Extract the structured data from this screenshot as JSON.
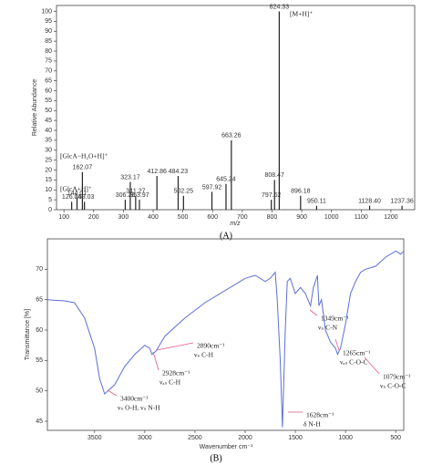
{
  "chart_data": [
    {
      "type": "bar",
      "xlabel": "m/z",
      "ylabel": "Relative Abundance",
      "caption": "(A)",
      "color": "#222222",
      "x": [
        126.04,
        144.01,
        162.07,
        169.03,
        306.28,
        323.17,
        341.27,
        353.97,
        412.86,
        484.23,
        502.25,
        597.92,
        645.24,
        663.26,
        797.62,
        808.47,
        824.33,
        896.18,
        950.11,
        1128.4,
        1237.36
      ],
      "x_labels": [
        "126.04",
        "144.01",
        "162.07",
        "169.03",
        "306.28",
        "323.17",
        "341.27",
        "353.97",
        "412.86",
        "484.23",
        "502.25",
        "597.92",
        "645.24",
        "663.26",
        "797.62",
        "808.47",
        "824.33",
        "896.18",
        "950.11",
        "1128.40",
        "1237.36"
      ],
      "values": [
        4,
        6,
        19,
        4,
        5,
        14,
        7,
        5,
        17,
        17,
        7,
        9,
        13,
        35,
        5,
        15,
        100,
        7,
        2,
        2,
        2
      ],
      "xlim": [
        75,
        1280
      ],
      "xticks": [
        100,
        200,
        300,
        400,
        500,
        600,
        700,
        800,
        900,
        1000,
        1100,
        1200
      ],
      "ylim": [
        0,
        103
      ],
      "yticks": [
        0,
        5,
        10,
        15,
        20,
        25,
        30,
        35,
        40,
        45,
        50,
        55,
        60,
        65,
        70,
        75,
        80,
        85,
        90,
        95,
        100
      ],
      "grid": false,
      "annotations": [
        "[M+H]⁺",
        "[GlcA−H₂O+H]⁺",
        "[GlcA+H]⁺"
      ],
      "annotation_color": "#d6336c"
    },
    {
      "type": "line",
      "xlabel": "Wavenumber cm⁻¹",
      "ylabel": "Transmittance [%]",
      "caption": "(B)",
      "color": "#5b6fd6",
      "x": [
        3970,
        3800,
        3700,
        3600,
        3500,
        3450,
        3400,
        3300,
        3200,
        3100,
        3000,
        2950,
        2928,
        2890,
        2800,
        2600,
        2400,
        2200,
        2000,
        1900,
        1800,
        1750,
        1700,
        1680,
        1650,
        1628,
        1600,
        1580,
        1550,
        1500,
        1450,
        1400,
        1349,
        1320,
        1280,
        1265,
        1240,
        1200,
        1150,
        1100,
        1079,
        1050,
        1000,
        950,
        900,
        850,
        800,
        700,
        600,
        500,
        450,
        420
      ],
      "values": [
        65,
        64.8,
        64.5,
        62,
        57,
        52,
        49.5,
        51,
        54,
        56,
        57.5,
        57,
        56,
        56.5,
        59,
        62,
        64.5,
        66.5,
        68.5,
        69,
        68,
        68.5,
        69.5,
        65,
        55,
        44,
        60,
        68,
        68.5,
        66,
        67,
        66,
        64,
        67,
        69,
        64,
        65,
        60,
        58,
        57,
        56,
        57,
        61,
        66,
        68,
        69.5,
        70,
        70.5,
        72,
        73,
        72.5,
        73
      ],
      "xlim": [
        3970,
        420
      ],
      "xticks": [
        3500,
        3000,
        2500,
        2000,
        1500,
        1000,
        500
      ],
      "ylim": [
        43.5,
        75
      ],
      "yticks": [
        45,
        50,
        55,
        60,
        65,
        70
      ],
      "grid": false,
      "annotations": [
        {
          "label": "3400cm⁻¹",
          "note": "νₛ O-H, νₛ N-H"
        },
        {
          "label": "2928cm⁻¹",
          "note": "νₐₛ C-H"
        },
        {
          "label": "2890cm⁻¹",
          "note": "νₛ C-H"
        },
        {
          "label": "1349cm⁻¹",
          "note": "νₛ C-N"
        },
        {
          "label": "1265cm⁻¹",
          "note": "νₐₛ C-O-C"
        },
        {
          "label": "1079cm⁻¹",
          "note": "νₛ C-O-C"
        },
        {
          "label": "1628cm⁻¹",
          "note": "δ N-H"
        }
      ],
      "annotation_color": "#e05a8a"
    }
  ]
}
